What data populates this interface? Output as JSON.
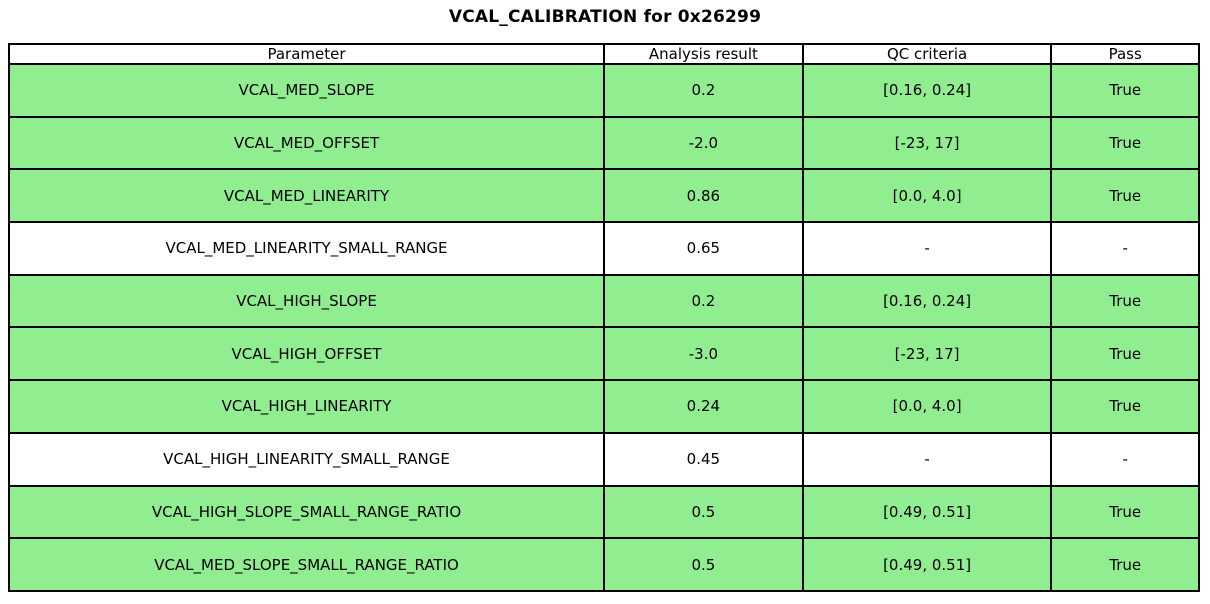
{
  "colors": {
    "pass_row": "#90EE90",
    "plain_row": "#ffffff",
    "border": "#000000",
    "text": "#000000",
    "background": "#ffffff"
  },
  "chart_data": {
    "type": "table",
    "title": "VCAL_CALIBRATION for 0x26299",
    "columns": [
      "Parameter",
      "Analysis result",
      "QC criteria",
      "Pass"
    ],
    "rows": [
      {
        "cells": [
          "VCAL_MED_SLOPE",
          "0.2",
          "[0.16, 0.24]",
          "True"
        ],
        "highlighted": true
      },
      {
        "cells": [
          "VCAL_MED_OFFSET",
          "-2.0",
          "[-23, 17]",
          "True"
        ],
        "highlighted": true
      },
      {
        "cells": [
          "VCAL_MED_LINEARITY",
          "0.86",
          "[0.0, 4.0]",
          "True"
        ],
        "highlighted": true
      },
      {
        "cells": [
          "VCAL_MED_LINEARITY_SMALL_RANGE",
          "0.65",
          "-",
          "-"
        ],
        "highlighted": false
      },
      {
        "cells": [
          "VCAL_HIGH_SLOPE",
          "0.2",
          "[0.16, 0.24]",
          "True"
        ],
        "highlighted": true
      },
      {
        "cells": [
          "VCAL_HIGH_OFFSET",
          "-3.0",
          "[-23, 17]",
          "True"
        ],
        "highlighted": true
      },
      {
        "cells": [
          "VCAL_HIGH_LINEARITY",
          "0.24",
          "[0.0, 4.0]",
          "True"
        ],
        "highlighted": true
      },
      {
        "cells": [
          "VCAL_HIGH_LINEARITY_SMALL_RANGE",
          "0.45",
          "-",
          "-"
        ],
        "highlighted": false
      },
      {
        "cells": [
          "VCAL_HIGH_SLOPE_SMALL_RANGE_RATIO",
          "0.5",
          "[0.49, 0.51]",
          "True"
        ],
        "highlighted": true
      },
      {
        "cells": [
          "VCAL_MED_SLOPE_SMALL_RANGE_RATIO",
          "0.5",
          "[0.49, 0.51]",
          "True"
        ],
        "highlighted": true
      }
    ]
  }
}
